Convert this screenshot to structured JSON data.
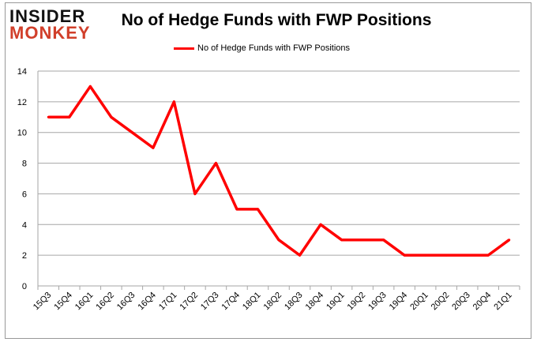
{
  "logo": {
    "line1": "INSIDER",
    "line2": "MONKEY"
  },
  "chart_data": {
    "type": "line",
    "title": "No of Hedge Funds with FWP Positions",
    "categories": [
      "15Q3",
      "15Q4",
      "16Q1",
      "16Q2",
      "16Q3",
      "16Q4",
      "17Q1",
      "17Q2",
      "17Q3",
      "17Q4",
      "18Q1",
      "18Q2",
      "18Q3",
      "18Q4",
      "19Q1",
      "19Q2",
      "19Q3",
      "19Q4",
      "20Q1",
      "20Q2",
      "20Q3",
      "20Q4",
      "21Q1"
    ],
    "series": [
      {
        "name": "No of Hedge Funds with FWP Positions",
        "color": "#ff0000",
        "values": [
          11,
          11,
          13,
          11,
          10,
          9,
          12,
          6,
          8,
          5,
          5,
          3,
          2,
          4,
          3,
          3,
          3,
          2,
          2,
          2,
          2,
          2,
          3
        ]
      }
    ],
    "ylim": [
      0,
      14
    ],
    "yticks": [
      0,
      2,
      4,
      6,
      8,
      10,
      12,
      14
    ],
    "grid": true,
    "legend": "top-center"
  }
}
